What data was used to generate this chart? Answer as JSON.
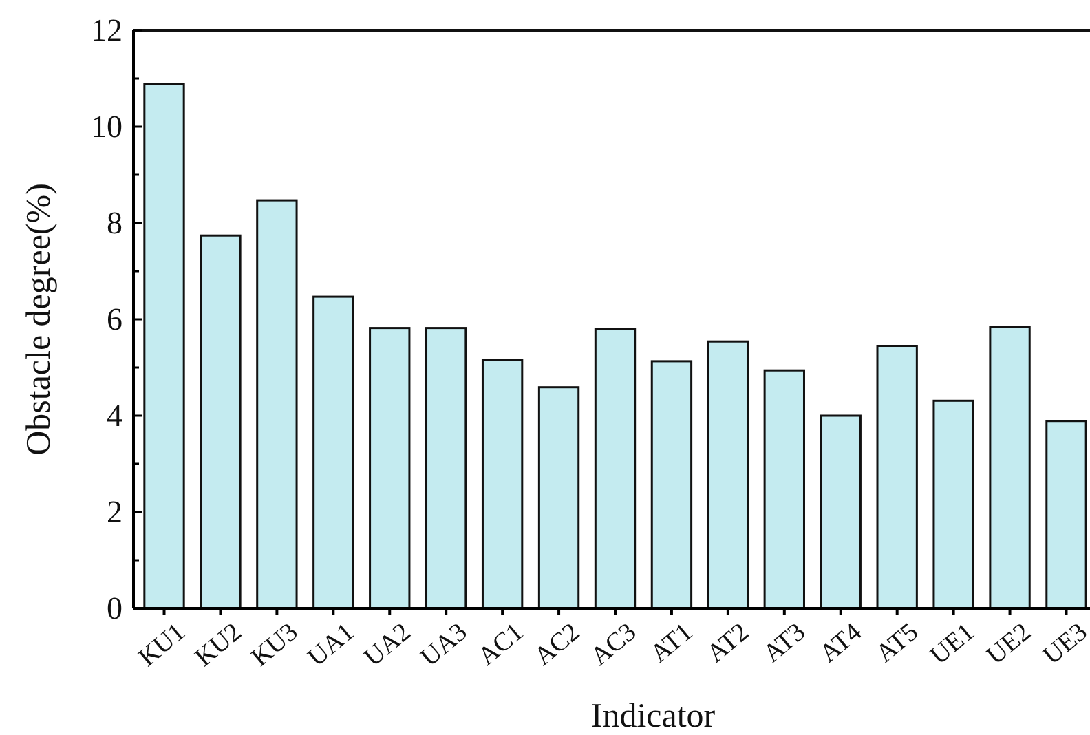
{
  "chart_data": {
    "type": "bar",
    "xlabel": "Indicator",
    "ylabel": "Obstacle degree(%)",
    "categories": [
      "KU1",
      "KU2",
      "KU3",
      "UA1",
      "UA2",
      "UA3",
      "AC1",
      "AC2",
      "AC3",
      "AT1",
      "AT2",
      "AT3",
      "AT4",
      "AT5",
      "UE1",
      "UE2",
      "UE3"
    ],
    "values": [
      10.88,
      7.74,
      8.47,
      6.47,
      5.82,
      5.82,
      5.16,
      4.59,
      5.8,
      5.13,
      5.54,
      4.94,
      4.0,
      5.45,
      4.31,
      5.85,
      3.89
    ],
    "color": "#c4ebf0",
    "ylim": [
      0,
      12
    ],
    "yticks": [
      0,
      {
        "value": 1,
        "label": null
      },
      2,
      {
        "value": 3,
        "label": null
      },
      4,
      {
        "value": 5,
        "label": null
      },
      6,
      {
        "value": 7,
        "label": null
      },
      8,
      {
        "value": 9,
        "label": null
      },
      10,
      {
        "value": 11,
        "label": null
      },
      12
    ],
    "grid": false
  }
}
